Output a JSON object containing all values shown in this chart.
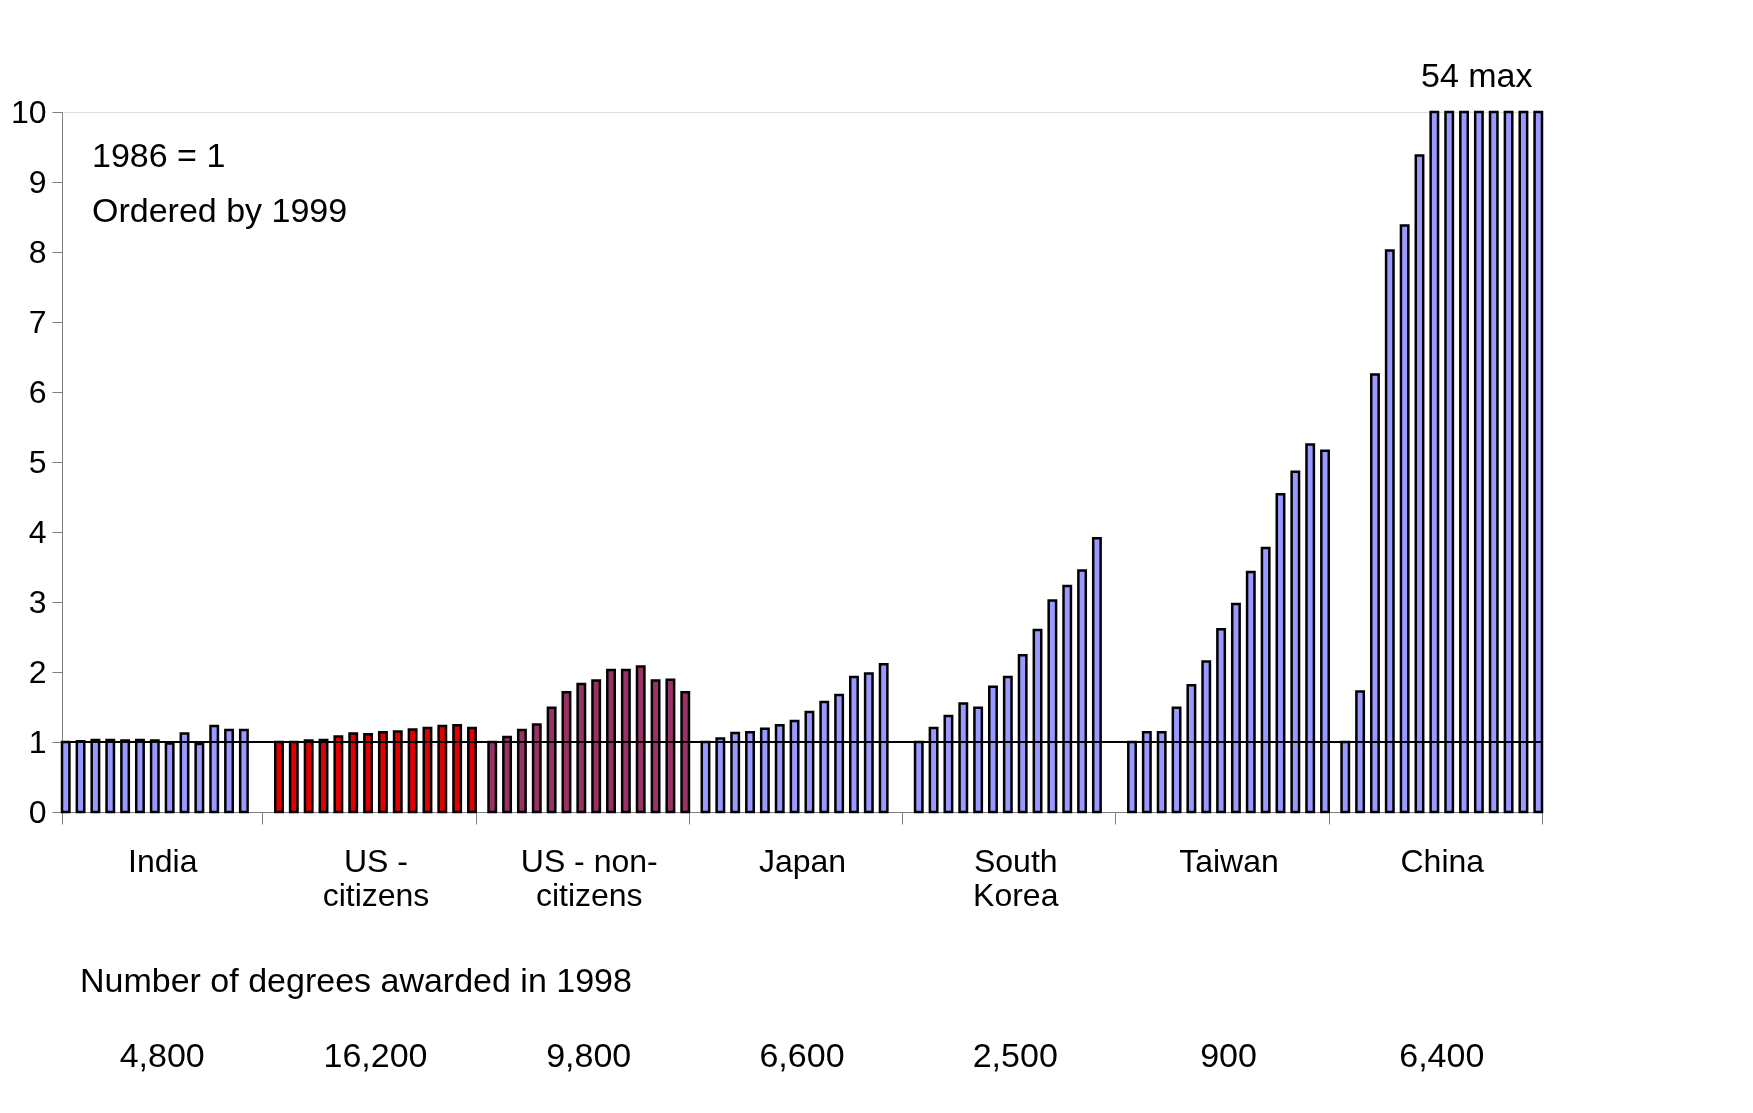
{
  "chart_data": {
    "type": "bar",
    "categories": [
      "India",
      "US - citizens",
      "US - non-citizens",
      "Japan",
      "South Korea",
      "Taiwan",
      "China"
    ],
    "series": [
      {
        "colors": [
          "#9999ff",
          "#e00000",
          "#993366",
          "#9999ff",
          "#9999ff",
          "#9999ff",
          "#9999ff"
        ],
        "values": [
          1.0,
          1.0,
          1.0,
          1.0,
          1.0,
          1.0,
          1.0
        ]
      },
      {
        "colors": [
          "#9999ff",
          "#e00000",
          "#993366",
          "#9999ff",
          "#9999ff",
          "#9999ff",
          "#9999ff"
        ],
        "values": [
          1.01,
          1.0,
          1.07,
          1.05,
          1.2,
          1.14,
          1.72
        ]
      },
      {
        "colors": [
          "#9999ff",
          "#e00000",
          "#993366",
          "#9999ff",
          "#9999ff",
          "#9999ff",
          "#9999ff"
        ],
        "values": [
          1.03,
          1.02,
          1.17,
          1.13,
          1.37,
          1.14,
          6.25
        ]
      },
      {
        "colors": [
          "#9999ff",
          "#e00000",
          "#993366",
          "#9999ff",
          "#9999ff",
          "#9999ff",
          "#9999ff"
        ],
        "values": [
          1.03,
          1.03,
          1.25,
          1.14,
          1.55,
          1.49,
          8.02
        ]
      },
      {
        "colors": [
          "#9999ff",
          "#e00000",
          "#993366",
          "#9999ff",
          "#9999ff",
          "#9999ff",
          "#9999ff"
        ],
        "values": [
          1.02,
          1.08,
          1.49,
          1.19,
          1.49,
          1.81,
          8.38
        ]
      },
      {
        "colors": [
          "#9999ff",
          "#e00000",
          "#993366",
          "#9999ff",
          "#9999ff",
          "#9999ff",
          "#9999ff"
        ],
        "values": [
          1.03,
          1.12,
          1.71,
          1.24,
          1.79,
          2.15,
          9.38
        ]
      },
      {
        "colors": [
          "#9999ff",
          "#e00000",
          "#993366",
          "#9999ff",
          "#9999ff",
          "#9999ff",
          "#9999ff"
        ],
        "values": [
          1.02,
          1.11,
          1.83,
          1.3,
          1.93,
          2.61,
          10
        ]
      },
      {
        "colors": [
          "#9999ff",
          "#e00000",
          "#993366",
          "#9999ff",
          "#9999ff",
          "#9999ff",
          "#9999ff"
        ],
        "values": [
          0.98,
          1.14,
          1.88,
          1.43,
          2.24,
          2.97,
          10
        ]
      },
      {
        "colors": [
          "#9999ff",
          "#e00000",
          "#993366",
          "#9999ff",
          "#9999ff",
          "#9999ff",
          "#9999ff"
        ],
        "values": [
          1.12,
          1.15,
          2.03,
          1.57,
          2.6,
          3.43,
          10
        ]
      },
      {
        "colors": [
          "#9999ff",
          "#e00000",
          "#993366",
          "#9999ff",
          "#9999ff",
          "#9999ff",
          "#9999ff"
        ],
        "values": [
          0.97,
          1.18,
          2.03,
          1.67,
          3.02,
          3.77,
          10
        ]
      },
      {
        "colors": [
          "#9999ff",
          "#e00000",
          "#993366",
          "#9999ff",
          "#9999ff",
          "#9999ff",
          "#9999ff"
        ],
        "values": [
          1.23,
          1.2,
          2.08,
          1.93,
          3.23,
          4.54,
          10
        ]
      },
      {
        "colors": [
          "#9999ff",
          "#e00000",
          "#993366",
          "#9999ff",
          "#9999ff",
          "#9999ff",
          "#9999ff"
        ],
        "values": [
          1.17,
          1.23,
          1.88,
          1.98,
          3.45,
          4.86,
          10
        ]
      },
      {
        "colors": [
          "#9999ff",
          "#e00000",
          "#993366",
          "#9999ff",
          "#9999ff",
          "#9999ff",
          "#9999ff"
        ],
        "values": [
          1.17,
          1.24,
          1.89,
          2.11,
          3.91,
          5.25,
          10
        ]
      },
      {
        "colors": [
          "#9999ff",
          "#e00000",
          "#993366",
          "#9999ff",
          "#9999ff",
          "#9999ff",
          "#9999ff"
        ],
        "values": [
          null,
          1.2,
          1.71,
          null,
          null,
          5.16,
          10
        ]
      }
    ],
    "ylim": [
      0,
      10
    ],
    "yticks": [
      0,
      1,
      2,
      3,
      4,
      5,
      6,
      7,
      8,
      9,
      10
    ],
    "grid": false,
    "ref_lines": [
      {
        "axis": "y",
        "value": 1,
        "color": "#000000"
      }
    ],
    "annotations": [
      "1986 = 1",
      "Ordered by 1999",
      {
        "text": "54 max",
        "x": "China",
        "y": 10
      },
      "Number of degrees awarded in 1998",
      "4,800",
      "16,200",
      "9,800",
      "6,600",
      "2,500",
      "900",
      "6,400"
    ]
  }
}
